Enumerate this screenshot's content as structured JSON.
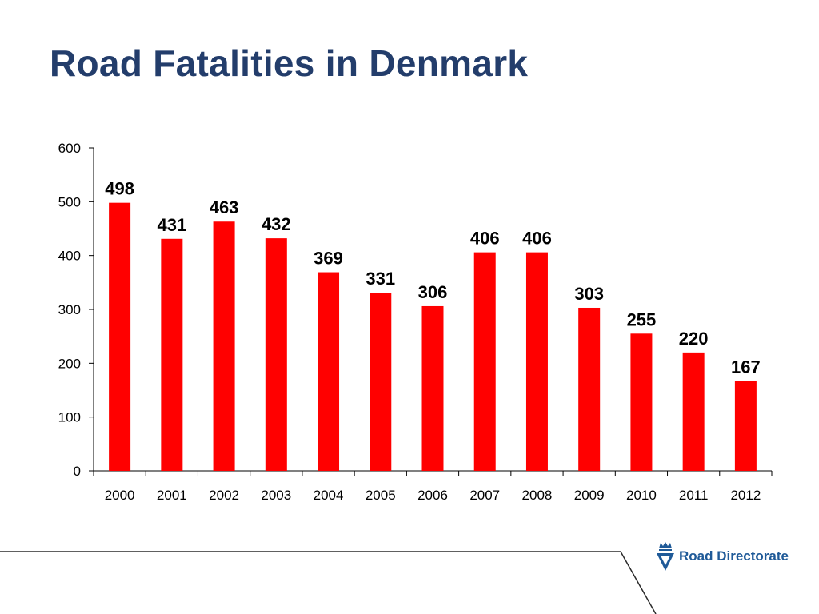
{
  "slide": {
    "title": "Road Fatalities in Denmark"
  },
  "logo": {
    "name": "Road Directorate"
  },
  "colors": {
    "title": "#233d6b",
    "bar": "#ff0000",
    "logo": "#1f5a98"
  },
  "chart_data": {
    "type": "bar",
    "title": "",
    "xlabel": "",
    "ylabel": "",
    "categories": [
      "2000",
      "2001",
      "2002",
      "2003",
      "2004",
      "2005",
      "2006",
      "2007",
      "2008",
      "2009",
      "2010",
      "2011",
      "2012"
    ],
    "values": [
      498,
      431,
      463,
      432,
      369,
      331,
      306,
      406,
      406,
      303,
      255,
      220,
      167
    ],
    "ylim": [
      0,
      600
    ],
    "yticks": [
      0,
      100,
      200,
      300,
      400,
      500,
      600
    ],
    "grid": false,
    "legend": "none",
    "data_labels": true
  }
}
